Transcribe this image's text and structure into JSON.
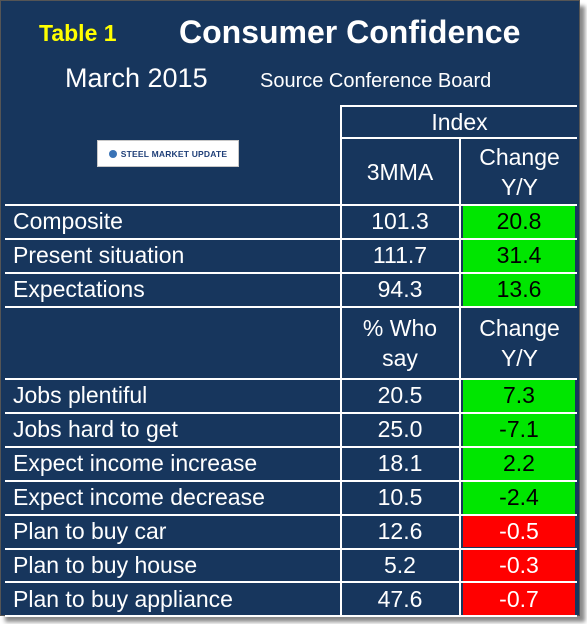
{
  "header": {
    "table_label": "Table 1",
    "title": "Consumer Confidence",
    "date": "March 2015",
    "source": "Source Conference Board",
    "logo_text": "STEEL MARKET UPDATE"
  },
  "columns": {
    "group": "Index",
    "value1": "3MMA",
    "change1": "Change Y/Y",
    "value2": "% Who say",
    "change2": "Change Y/Y"
  },
  "index_rows": [
    {
      "label": "Composite",
      "value": "101.3",
      "change": "20.8",
      "status": "positive"
    },
    {
      "label": "Present situation",
      "value": "111.7",
      "change": "31.4",
      "status": "positive"
    },
    {
      "label": "Expectations",
      "value": "94.3",
      "change": "13.6",
      "status": "positive"
    }
  ],
  "survey_rows": [
    {
      "label": "Jobs plentiful",
      "value": "20.5",
      "change": "7.3",
      "status": "positive"
    },
    {
      "label": "Jobs hard to get",
      "value": "25.0",
      "change": "-7.1",
      "status": "positive"
    },
    {
      "label": "Expect income increase",
      "value": "18.1",
      "change": "2.2",
      "status": "positive"
    },
    {
      "label": "Expect income decrease",
      "value": "10.5",
      "change": "-2.4",
      "status": "positive"
    },
    {
      "label": "Plan to buy car",
      "value": "12.6",
      "change": "-0.5",
      "status": "negative"
    },
    {
      "label": "Plan to buy house",
      "value": "5.2",
      "change": "-0.3",
      "status": "negative"
    },
    {
      "label": "Plan to buy appliance",
      "value": "47.6",
      "change": "-0.7",
      "status": "negative"
    }
  ],
  "colors": {
    "background": "#17365d",
    "positive": "#00e600",
    "negative": "#ff0000",
    "label": "#ffff00"
  }
}
